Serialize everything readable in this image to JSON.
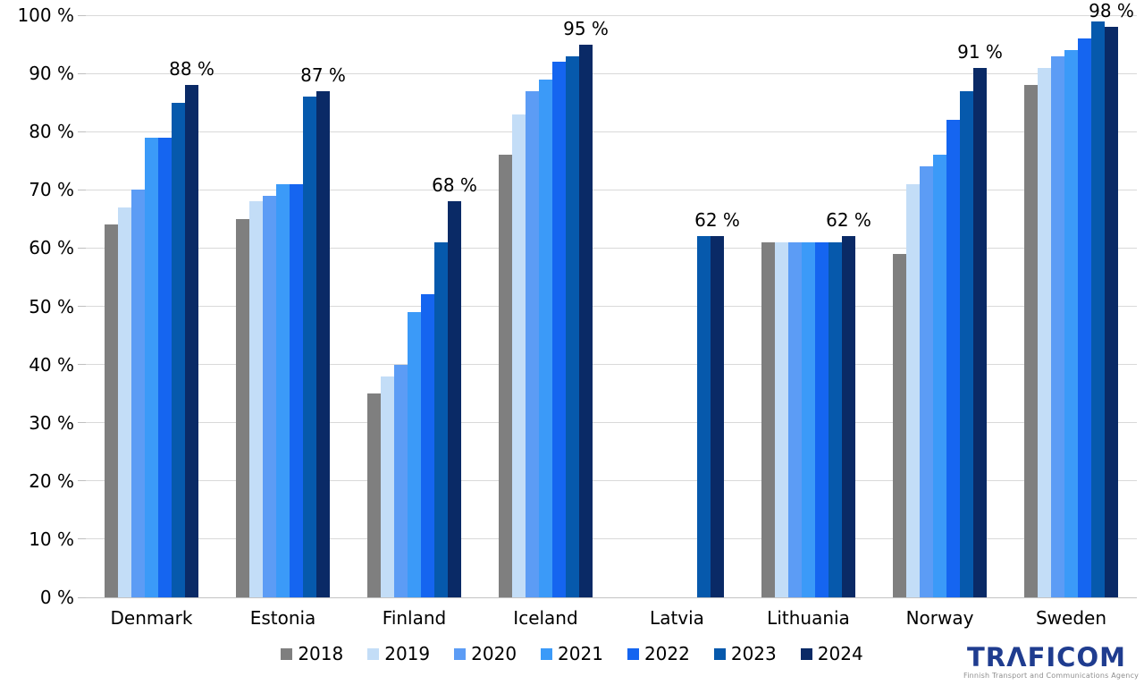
{
  "chart_data": {
    "type": "bar",
    "title": "",
    "unit": "%",
    "categories": [
      "Denmark",
      "Estonia",
      "Finland",
      "Iceland",
      "Latvia",
      "Lithuania",
      "Norway",
      "Sweden"
    ],
    "series": [
      {
        "name": "2018",
        "color": "#7f7f7f",
        "values": [
          64,
          65,
          35,
          76,
          null,
          61,
          59,
          88
        ]
      },
      {
        "name": "2019",
        "color": "#c3ddf7",
        "values": [
          67,
          68,
          38,
          83,
          null,
          61,
          71,
          91
        ]
      },
      {
        "name": "2020",
        "color": "#5c9cf5",
        "values": [
          70,
          69,
          40,
          87,
          null,
          61,
          74,
          93
        ]
      },
      {
        "name": "2021",
        "color": "#3b9af8",
        "values": [
          79,
          71,
          49,
          89,
          null,
          61,
          76,
          94
        ]
      },
      {
        "name": "2022",
        "color": "#1565f0",
        "values": [
          79,
          71,
          52,
          92,
          null,
          61,
          82,
          96
        ]
      },
      {
        "name": "2023",
        "color": "#0659ac",
        "values": [
          85,
          86,
          61,
          93,
          62,
          61,
          87,
          99
        ]
      },
      {
        "name": "2024",
        "color": "#0a2a66",
        "values": [
          88,
          87,
          68,
          95,
          62,
          62,
          91,
          98
        ]
      }
    ],
    "value_labels": [
      "88 %",
      "87 %",
      "68 %",
      "95 %",
      "62 %",
      "62 %",
      "91 %",
      "98 %"
    ],
    "ylim": [
      0,
      100
    ],
    "yticks": [
      "0 %",
      "10 %",
      "20 %",
      "30 %",
      "40 %",
      "50 %",
      "60 %",
      "70 %",
      "80 %",
      "90 %",
      "100 %"
    ],
    "grid": true,
    "legend_position": "bottom",
    "colors": {
      "gridline": "#d9d9d9",
      "baseline": "#c3c3c3",
      "text": "#000000"
    }
  },
  "logo": {
    "brand": "TRAFICOM",
    "tagline": "Finnish Transport and Communications Agency",
    "brand_color": "#1f3c8f"
  }
}
